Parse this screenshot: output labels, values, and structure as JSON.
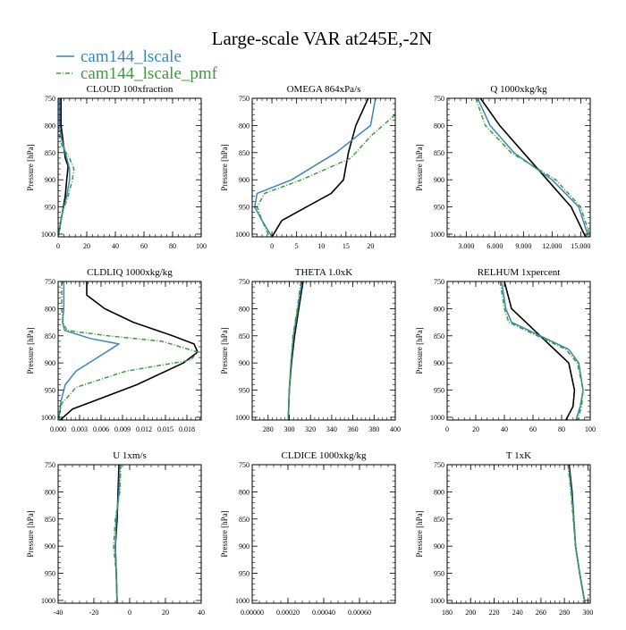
{
  "figure": {
    "title": "Large-scale VAR at245E,-2N"
  },
  "colors": {
    "cam144_lscale": "#3a87b8",
    "cam144_lscale_pmf": "#3a9c3a",
    "obs": "#000000"
  },
  "legend": [
    {
      "key": "cam144_lscale",
      "label": "cam144_lscale",
      "dash": ""
    },
    {
      "key": "cam144_lscale_pmf",
      "label": "cam144_lscale_pmf",
      "dash": "5,2,1,2"
    }
  ],
  "chart_data": [
    {
      "type": "line",
      "title": "CLOUD  100xfraction",
      "ylabel": "Pressure [hPa]",
      "xlim": [
        0,
        100
      ],
      "ylim": [
        750,
        1005
      ],
      "xticks": [
        0,
        20,
        40,
        60,
        80,
        100
      ],
      "xticklabels": [
        "0",
        "20",
        "40",
        "60",
        "80",
        "100"
      ],
      "yticks": [
        750,
        800,
        850,
        900,
        950,
        1000
      ],
      "yticklabels": [
        "750",
        "800",
        "850",
        "900",
        "950",
        "1000"
      ],
      "series": [
        {
          "key": "obs",
          "x": [
            2,
            2,
            3,
            4,
            5,
            7,
            6,
            5,
            3,
            1,
            0
          ],
          "y": [
            750,
            800,
            820,
            840,
            860,
            875,
            900,
            930,
            960,
            990,
            1005
          ]
        },
        {
          "key": "cam144_lscale",
          "x": [
            1,
            1,
            2,
            4,
            6,
            8,
            8,
            6,
            3,
            1,
            0
          ],
          "y": [
            750,
            800,
            820,
            840,
            860,
            880,
            900,
            930,
            960,
            990,
            1005
          ]
        },
        {
          "key": "cam144_lscale_pmf",
          "x": [
            0,
            0,
            1,
            3,
            8,
            11,
            10,
            7,
            3,
            1,
            0
          ],
          "y": [
            750,
            800,
            820,
            840,
            860,
            880,
            900,
            930,
            960,
            990,
            1005
          ]
        }
      ]
    },
    {
      "type": "line",
      "title": "OMEGA  864xPa/s",
      "ylabel": "Pressure [hPa]",
      "xlim": [
        -4,
        25
      ],
      "ylim": [
        750,
        1005
      ],
      "xticks": [
        0,
        5,
        10,
        15,
        20
      ],
      "xticklabels": [
        "0",
        "5",
        "10",
        "15",
        "20"
      ],
      "yticks": [
        750,
        800,
        850,
        900,
        950,
        1000
      ],
      "yticklabels": [
        "750",
        "800",
        "850",
        "900",
        "950",
        "1000"
      ],
      "series": [
        {
          "key": "obs",
          "x": [
            19.5,
            17,
            15.5,
            14.5,
            12,
            7,
            2,
            0
          ],
          "y": [
            750,
            800,
            850,
            900,
            925,
            950,
            975,
            1005
          ]
        },
        {
          "key": "cam144_lscale",
          "x": [
            21,
            20,
            13,
            4,
            -3,
            -3.5,
            -2,
            0
          ],
          "y": [
            750,
            800,
            850,
            900,
            925,
            950,
            975,
            1005
          ]
        },
        {
          "key": "cam144_lscale_pmf",
          "x": [
            25,
            20,
            16,
            6,
            -1.5,
            -3,
            -2,
            -0.5
          ],
          "y": [
            780,
            820,
            860,
            900,
            925,
            950,
            975,
            1005
          ]
        }
      ]
    },
    {
      "type": "line",
      "title": "Q  1000xkg/kg",
      "ylabel": "Pressure [hPa]",
      "xlim": [
        1,
        16
      ],
      "ylim": [
        750,
        1005
      ],
      "xticks": [
        3,
        6,
        9,
        12,
        15
      ],
      "xticklabels": [
        "3.000",
        "6.000",
        "9.000",
        "12.000",
        "15.000"
      ],
      "yticks": [
        750,
        800,
        850,
        900,
        950,
        1000
      ],
      "yticklabels": [
        "750",
        "800",
        "850",
        "900",
        "950",
        "1000"
      ],
      "series": [
        {
          "key": "obs",
          "x": [
            4.5,
            6.5,
            9,
            11.5,
            14,
            15.5
          ],
          "y": [
            750,
            800,
            850,
            900,
            950,
            1005
          ]
        },
        {
          "key": "cam144_lscale",
          "x": [
            4.2,
            5.5,
            8,
            12,
            14.8,
            15.8
          ],
          "y": [
            750,
            800,
            850,
            900,
            950,
            1005
          ]
        },
        {
          "key": "cam144_lscale_pmf",
          "x": [
            4,
            5,
            7.7,
            12.4,
            15,
            16
          ],
          "y": [
            750,
            800,
            850,
            900,
            950,
            1005
          ]
        }
      ]
    },
    {
      "type": "line",
      "title": "CLDLIQ  1000xkg/kg",
      "ylabel": "Pressure [hPa]",
      "xlim": [
        0,
        0.02
      ],
      "ylim": [
        750,
        1005
      ],
      "xticks": [
        0,
        0.003,
        0.006,
        0.009,
        0.012,
        0.015,
        0.018
      ],
      "xticklabels": [
        "0.000",
        "0.003",
        "0.006",
        "0.009",
        "0.012",
        "0.015",
        "0.018"
      ],
      "yticks": [
        750,
        800,
        850,
        900,
        950,
        1000
      ],
      "yticklabels": [
        "750",
        "800",
        "850",
        "900",
        "950",
        "1000"
      ],
      "series": [
        {
          "key": "obs",
          "x": [
            0.004,
            0.004,
            0.0065,
            0.0105,
            0.016,
            0.019,
            0.0195,
            0.0175,
            0.011,
            0.005,
            0.002,
            0.0003
          ],
          "y": [
            750,
            775,
            800,
            825,
            850,
            865,
            880,
            900,
            940,
            970,
            985,
            1005
          ]
        },
        {
          "key": "cam144_lscale",
          "x": [
            0.0008,
            0.0008,
            0.0006,
            0.0009,
            0.0045,
            0.0085,
            0.0055,
            0.0025,
            0.001,
            0.0004,
            0.0001
          ],
          "y": [
            750,
            800,
            825,
            840,
            855,
            865,
            890,
            915,
            940,
            970,
            1005
          ]
        },
        {
          "key": "cam144_lscale_pmf",
          "x": [
            0.0005,
            0.0005,
            0.0007,
            0.0012,
            0.007,
            0.0145,
            0.0195,
            0.0185,
            0.0095,
            0.0025,
            0.0005,
            0
          ],
          "y": [
            750,
            800,
            825,
            840,
            850,
            860,
            880,
            895,
            915,
            945,
            975,
            1005
          ]
        }
      ]
    },
    {
      "type": "line",
      "title": "THETA  1.0xK",
      "ylabel": "Pressure [hPa]",
      "xlim": [
        265,
        400
      ],
      "ylim": [
        750,
        1005
      ],
      "xticks": [
        280,
        300,
        320,
        340,
        360,
        380,
        400
      ],
      "xticklabels": [
        "280",
        "300",
        "320",
        "340",
        "360",
        "380",
        "400"
      ],
      "yticks": [
        750,
        800,
        850,
        900,
        950,
        1000
      ],
      "yticklabels": [
        "750",
        "800",
        "850",
        "900",
        "950",
        "1000"
      ],
      "series": [
        {
          "key": "obs",
          "x": [
            313,
            309,
            305,
            302,
            300,
            299
          ],
          "y": [
            750,
            800,
            850,
            900,
            950,
            1005
          ]
        },
        {
          "key": "cam144_lscale",
          "x": [
            312,
            308,
            304,
            301.5,
            300,
            299
          ],
          "y": [
            750,
            800,
            850,
            900,
            950,
            1005
          ]
        },
        {
          "key": "cam144_lscale_pmf",
          "x": [
            311,
            307.5,
            303.5,
            301.5,
            300,
            299
          ],
          "y": [
            750,
            800,
            850,
            900,
            950,
            1005
          ]
        }
      ]
    },
    {
      "type": "line",
      "title": "RELHUM  1xpercent",
      "ylabel": "Pressure [hPa]",
      "xlim": [
        0,
        100
      ],
      "ylim": [
        750,
        1005
      ],
      "xticks": [
        0,
        20,
        40,
        60,
        80,
        100
      ],
      "xticklabels": [
        "0",
        "20",
        "40",
        "60",
        "80",
        "100"
      ],
      "yticks": [
        750,
        800,
        850,
        900,
        950,
        1000
      ],
      "yticklabels": [
        "750",
        "800",
        "850",
        "900",
        "950",
        "1000"
      ],
      "series": [
        {
          "key": "obs",
          "x": [
            40,
            45,
            55,
            65,
            75,
            85,
            89,
            88,
            83
          ],
          "y": [
            750,
            800,
            825,
            850,
            875,
            900,
            950,
            980,
            1005
          ]
        },
        {
          "key": "cam144_lscale",
          "x": [
            38,
            41,
            45,
            65,
            85,
            92,
            95,
            93,
            90
          ],
          "y": [
            750,
            800,
            825,
            850,
            875,
            900,
            950,
            980,
            1005
          ]
        },
        {
          "key": "cam144_lscale_pmf",
          "x": [
            37,
            40,
            43,
            63,
            83,
            91,
            95,
            94,
            91
          ],
          "y": [
            750,
            800,
            825,
            850,
            875,
            900,
            950,
            980,
            1005
          ]
        }
      ]
    },
    {
      "type": "line",
      "title": "U  1xm/s",
      "ylabel": "Pressure [hPa]",
      "xlim": [
        -40,
        40
      ],
      "ylim": [
        750,
        1005
      ],
      "xticks": [
        -40,
        -20,
        0,
        20,
        40
      ],
      "xticklabels": [
        "-40",
        "-20",
        "0",
        "20",
        "40"
      ],
      "yticks": [
        750,
        800,
        850,
        900,
        950,
        1000
      ],
      "yticklabels": [
        "750",
        "800",
        "850",
        "900",
        "950",
        "1000"
      ],
      "series": [
        {
          "key": "obs",
          "x": [
            -6,
            -6.5,
            -7,
            -8,
            -7.5,
            -7
          ],
          "y": [
            750,
            800,
            850,
            900,
            950,
            1005
          ]
        },
        {
          "key": "cam144_lscale",
          "x": [
            -5.5,
            -6,
            -7.5,
            -8,
            -7.5,
            -7
          ],
          "y": [
            750,
            800,
            850,
            900,
            950,
            1005
          ]
        },
        {
          "key": "cam144_lscale_pmf",
          "x": [
            -5,
            -5.5,
            -8,
            -9,
            -7.5,
            -7
          ],
          "y": [
            750,
            800,
            850,
            900,
            950,
            1005
          ]
        }
      ]
    },
    {
      "type": "line",
      "title": "CLDICE  1000xkg/kg",
      "ylabel": "Pressure [hPa]",
      "xlim": [
        0,
        0.0008
      ],
      "ylim": [
        750,
        1005
      ],
      "xticks": [
        0,
        0.0002,
        0.0004,
        0.0006
      ],
      "xticklabels": [
        "0.00000",
        "0.00020",
        "0.00040",
        "0.00060"
      ],
      "yticks": [
        750,
        800,
        850,
        900,
        950,
        1000
      ],
      "yticklabels": [
        "750",
        "800",
        "850",
        "900",
        "950",
        "1000"
      ],
      "series": []
    },
    {
      "type": "line",
      "title": "T  1xK",
      "ylabel": "Pressure [hPa]",
      "xlim": [
        180,
        302
      ],
      "ylim": [
        750,
        1005
      ],
      "xticks": [
        180,
        200,
        220,
        240,
        260,
        280,
        300
      ],
      "xticklabels": [
        "180",
        "200",
        "220",
        "240",
        "260",
        "280",
        "300"
      ],
      "yticks": [
        750,
        800,
        850,
        900,
        950,
        1000
      ],
      "yticklabels": [
        "750",
        "800",
        "850",
        "900",
        "950",
        "1000"
      ],
      "series": [
        {
          "key": "obs",
          "x": [
            284,
            286.5,
            288,
            289.5,
            293,
            297.5
          ],
          "y": [
            750,
            800,
            850,
            900,
            950,
            1005
          ]
        },
        {
          "key": "cam144_lscale",
          "x": [
            283.5,
            286,
            288,
            289.5,
            293,
            297.5
          ],
          "y": [
            750,
            800,
            850,
            900,
            950,
            1005
          ]
        },
        {
          "key": "cam144_lscale_pmf",
          "x": [
            283,
            285.5,
            287.5,
            289.5,
            293,
            297.5
          ],
          "y": [
            750,
            800,
            850,
            900,
            950,
            1005
          ]
        }
      ]
    }
  ]
}
